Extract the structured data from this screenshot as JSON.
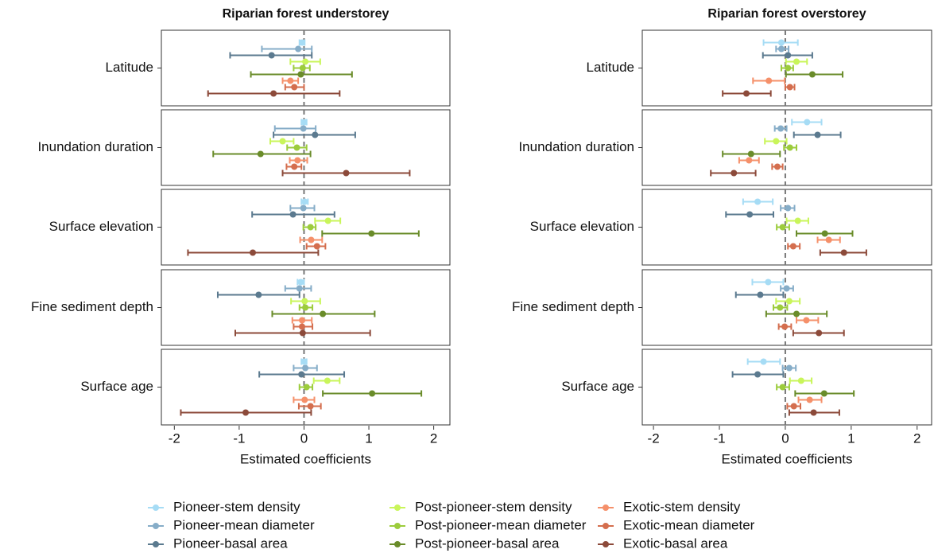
{
  "chart_data": [
    {
      "type": "errorbar",
      "title": "Riparian forest understorey",
      "xlabel": "Estimated coefficients",
      "categories": [
        "Latitude",
        "Inundation duration",
        "Surface elevation",
        "Fine sediment depth",
        "Surface age"
      ],
      "xlim": [
        -2.2,
        2.25
      ],
      "xticks": [
        -2,
        -1,
        0,
        1,
        2
      ],
      "refline": 0,
      "series": [
        {
          "name": "Pioneer-stem density",
          "color": "#a6dcf5",
          "values": [
            -0.03,
            0.0,
            0.01,
            -0.05,
            0.0
          ],
          "lower": [
            -0.07,
            -0.04,
            -0.04,
            -0.1,
            -0.04
          ],
          "upper": [
            0.01,
            0.04,
            0.06,
            0.0,
            0.04
          ]
        },
        {
          "name": "Pioneer-mean diameter",
          "color": "#86adc8",
          "values": [
            -0.09,
            -0.01,
            -0.01,
            -0.07,
            0.02
          ],
          "lower": [
            -0.65,
            -0.45,
            -0.21,
            -0.29,
            -0.16
          ],
          "upper": [
            0.12,
            0.18,
            0.16,
            0.11,
            0.2
          ]
        },
        {
          "name": "Pioneer-basal area",
          "color": "#5b7a8f",
          "values": [
            -0.5,
            0.17,
            -0.17,
            -0.7,
            -0.04
          ],
          "lower": [
            -1.14,
            -0.47,
            -0.8,
            -1.33,
            -0.69
          ],
          "upper": [
            0.12,
            0.79,
            0.47,
            -0.07,
            0.62
          ]
        },
        {
          "name": "Post-pioneer-stem density",
          "color": "#c9f55a",
          "values": [
            0.02,
            -0.33,
            0.37,
            0.01,
            0.36
          ],
          "lower": [
            -0.21,
            -0.52,
            0.17,
            -0.2,
            0.15
          ],
          "upper": [
            0.25,
            -0.16,
            0.56,
            0.25,
            0.55
          ]
        },
        {
          "name": "Post-pioneer-mean diameter",
          "color": "#9ccc3c",
          "values": [
            -0.02,
            -0.11,
            0.1,
            0.02,
            0.04
          ],
          "lower": [
            -0.16,
            -0.26,
            -0.01,
            -0.07,
            -0.07
          ],
          "upper": [
            0.09,
            0.04,
            0.18,
            0.13,
            0.13
          ]
        },
        {
          "name": "Post-pioneer-basal area",
          "color": "#6a8c2a",
          "values": [
            -0.05,
            -0.67,
            1.04,
            0.29,
            1.05
          ],
          "lower": [
            -0.82,
            -1.4,
            0.28,
            -0.49,
            0.29
          ],
          "upper": [
            0.74,
            0.1,
            1.77,
            1.09,
            1.81
          ]
        },
        {
          "name": "Exotic-stem density",
          "color": "#f5906a",
          "values": [
            -0.21,
            -0.1,
            0.11,
            -0.03,
            0.01
          ],
          "lower": [
            -0.33,
            -0.22,
            -0.06,
            -0.18,
            -0.16
          ],
          "upper": [
            -0.09,
            0.05,
            0.28,
            0.12,
            0.16
          ]
        },
        {
          "name": "Exotic-mean diameter",
          "color": "#d46e4e",
          "values": [
            -0.15,
            -0.15,
            0.2,
            -0.03,
            0.1
          ],
          "lower": [
            -0.29,
            -0.27,
            0.04,
            -0.16,
            -0.08
          ],
          "upper": [
            0.0,
            -0.04,
            0.33,
            0.13,
            0.26
          ]
        },
        {
          "name": "Exotic-basal area",
          "color": "#8c4a3a",
          "values": [
            -0.47,
            0.65,
            -0.79,
            -0.02,
            -0.9
          ],
          "lower": [
            -1.48,
            -0.33,
            -1.79,
            -1.06,
            -1.9
          ],
          "upper": [
            0.55,
            1.63,
            0.22,
            1.02,
            0.11
          ]
        }
      ]
    },
    {
      "type": "errorbar",
      "title": "Riparian forest overstorey",
      "xlabel": "Estimated coefficients",
      "categories": [
        "Latitude",
        "Inundation duration",
        "Surface elevation",
        "Fine sediment depth",
        "Surface age"
      ],
      "xlim": [
        -2.17,
        2.22
      ],
      "xticks": [
        -2,
        -1,
        0,
        1,
        2
      ],
      "refline": 0,
      "series": [
        {
          "color": "#a6dcf5",
          "values": [
            -0.06,
            0.33,
            -0.42,
            -0.26,
            -0.33
          ],
          "lower": [
            -0.33,
            0.1,
            -0.64,
            -0.5,
            -0.57
          ],
          "upper": [
            0.19,
            0.55,
            -0.19,
            -0.03,
            -0.08
          ]
        },
        {
          "color": "#86adc8",
          "values": [
            -0.06,
            -0.07,
            0.04,
            0.02,
            0.06
          ],
          "lower": [
            -0.14,
            -0.16,
            -0.07,
            -0.07,
            -0.04
          ],
          "upper": [
            0.05,
            0.02,
            0.14,
            0.12,
            0.16
          ]
        },
        {
          "color": "#5b7a8f",
          "values": [
            0.04,
            0.49,
            -0.54,
            -0.38,
            -0.42
          ],
          "lower": [
            -0.34,
            0.13,
            -0.9,
            -0.75,
            -0.8
          ],
          "upper": [
            0.41,
            0.84,
            -0.18,
            -0.03,
            -0.03
          ]
        },
        {
          "color": "#c9f55a",
          "values": [
            0.17,
            -0.14,
            0.19,
            0.06,
            0.24
          ],
          "lower": [
            0.01,
            -0.31,
            0.02,
            -0.14,
            0.07
          ],
          "upper": [
            0.33,
            0.02,
            0.35,
            0.22,
            0.4
          ]
        },
        {
          "color": "#9ccc3c",
          "values": [
            0.04,
            0.07,
            -0.04,
            -0.08,
            -0.04
          ],
          "lower": [
            -0.06,
            -0.02,
            -0.13,
            -0.18,
            -0.13
          ],
          "upper": [
            0.12,
            0.17,
            0.06,
            0.03,
            0.06
          ]
        },
        {
          "color": "#6a8c2a",
          "values": [
            0.41,
            -0.52,
            0.6,
            0.17,
            0.59
          ],
          "lower": [
            0.01,
            -0.95,
            0.17,
            -0.29,
            0.15
          ],
          "upper": [
            0.87,
            -0.08,
            1.02,
            0.63,
            1.04
          ]
        },
        {
          "color": "#f5906a",
          "values": [
            -0.25,
            -0.55,
            0.66,
            0.32,
            0.37
          ],
          "lower": [
            -0.49,
            -0.7,
            0.49,
            0.17,
            0.2
          ],
          "upper": [
            -0.01,
            -0.4,
            0.83,
            0.5,
            0.55
          ]
        },
        {
          "color": "#d46e4e",
          "values": [
            0.07,
            -0.12,
            0.12,
            -0.01,
            0.13
          ],
          "lower": [
            0.0,
            -0.2,
            0.04,
            -0.1,
            0.03
          ],
          "upper": [
            0.14,
            -0.04,
            0.22,
            0.09,
            0.23
          ]
        },
        {
          "color": "#8c4a3a",
          "values": [
            -0.59,
            -0.78,
            0.89,
            0.51,
            0.43
          ],
          "lower": [
            -0.95,
            -1.13,
            0.53,
            0.12,
            0.06
          ],
          "upper": [
            -0.22,
            -0.45,
            1.23,
            0.89,
            0.82
          ]
        }
      ]
    }
  ]
}
